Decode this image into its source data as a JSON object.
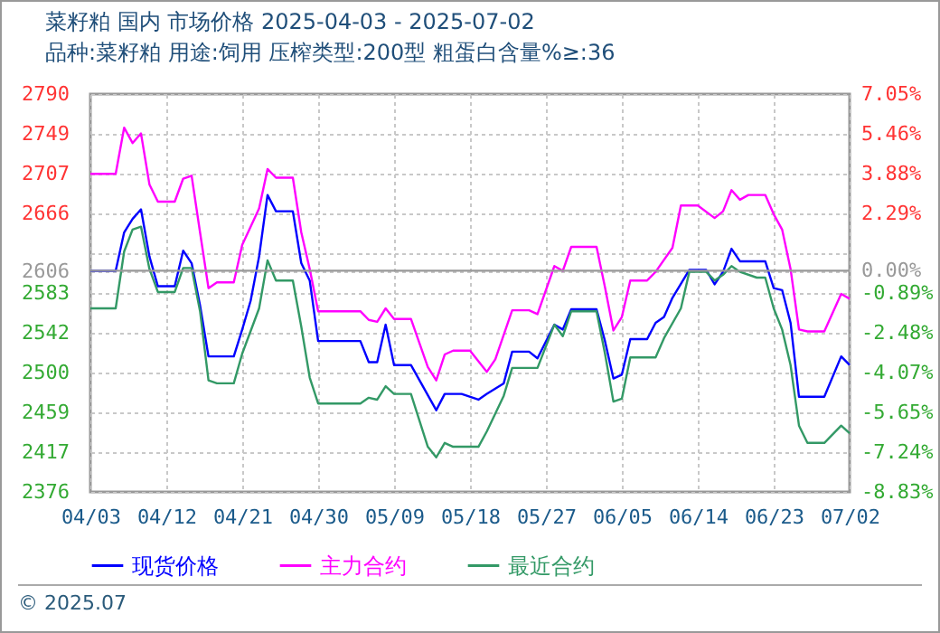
{
  "chart_data": {
    "type": "line",
    "title": "菜籽粕 国内 市场价格 2025-04-03 - 2025-07-02",
    "subtitle": "品种:菜籽粕 用途:饲用 压榨类型:200型 粗蛋白含量%≥:36",
    "xlim": [
      "2025-04-03",
      "2025-07-02"
    ],
    "xticks": [
      {
        "value": "2025-04-03",
        "label": "04/03"
      },
      {
        "value": "2025-04-12",
        "label": "04/12"
      },
      {
        "value": "2025-04-21",
        "label": "04/21"
      },
      {
        "value": "2025-04-30",
        "label": "04/30"
      },
      {
        "value": "2025-05-09",
        "label": "05/09"
      },
      {
        "value": "2025-05-18",
        "label": "05/18"
      },
      {
        "value": "2025-05-27",
        "label": "05/27"
      },
      {
        "value": "2025-06-05",
        "label": "06/05"
      },
      {
        "value": "2025-06-14",
        "label": "06/14"
      },
      {
        "value": "2025-06-23",
        "label": "06/23"
      },
      {
        "value": "2025-07-02",
        "label": "07/02"
      }
    ],
    "ylim": [
      2376,
      2790
    ],
    "yticks": [
      2790,
      2749,
      2707,
      2666,
      {
        "value": 2624,
        "label": null
      },
      2606,
      2583,
      2542,
      2500,
      2459,
      2417,
      2376
    ],
    "y2lim": [
      -8.83,
      7.05
    ],
    "y2ticks": [
      {
        "value": 7.05,
        "label": "7.05%"
      },
      {
        "value": 5.46,
        "label": "5.46%"
      },
      {
        "value": 3.88,
        "label": "3.88%"
      },
      {
        "value": 2.29,
        "label": "2.29%"
      },
      {
        "value": 0,
        "label": "0.00%"
      },
      {
        "value": -0.89,
        "label": "-0.89%"
      },
      {
        "value": -2.48,
        "label": "-2.48%"
      },
      {
        "value": -4.07,
        "label": "-4.07%"
      },
      {
        "value": -5.65,
        "label": "-5.65%"
      },
      {
        "value": -7.24,
        "label": "-7.24%"
      },
      {
        "value": -8.83,
        "label": "-8.83%"
      }
    ],
    "ref_lines": [
      {
        "axis": "y2",
        "value": 0,
        "color": "#999999"
      }
    ],
    "grid": true,
    "legend": "bottom",
    "annotations": [
      "© 2025.07"
    ],
    "series": [
      {
        "name": "现货价格",
        "color": "#0000ff",
        "x": [
          "2025-04-03",
          "2025-04-06",
          "2025-04-07",
          "2025-04-08",
          "2025-04-09",
          "2025-04-10",
          "2025-04-11",
          "2025-04-13",
          "2025-04-14",
          "2025-04-15",
          "2025-04-16",
          "2025-04-17",
          "2025-04-20",
          "2025-04-21",
          "2025-04-22",
          "2025-04-23",
          "2025-04-24",
          "2025-04-25",
          "2025-04-27",
          "2025-04-28",
          "2025-04-29",
          "2025-04-30",
          "2025-05-05",
          "2025-05-06",
          "2025-05-07",
          "2025-05-08",
          "2025-05-09",
          "2025-05-11",
          "2025-05-14",
          "2025-05-15",
          "2025-05-17",
          "2025-05-19",
          "2025-05-20",
          "2025-05-22",
          "2025-05-23",
          "2025-05-25",
          "2025-05-26",
          "2025-05-28",
          "2025-05-29",
          "2025-05-30",
          "2025-06-02",
          "2025-06-03",
          "2025-06-04",
          "2025-06-05",
          "2025-06-06",
          "2025-06-08",
          "2025-06-09",
          "2025-06-10",
          "2025-06-11",
          "2025-06-13",
          "2025-06-15",
          "2025-06-16",
          "2025-06-17",
          "2025-06-18",
          "2025-06-19",
          "2025-06-22",
          "2025-06-23",
          "2025-06-24",
          "2025-06-25",
          "2025-06-26",
          "2025-06-29",
          "2025-07-01",
          "2025-07-02"
        ],
        "values": [
          2606,
          2606,
          2646,
          2660,
          2670,
          2621,
          2590,
          2590,
          2627,
          2614,
          2570,
          2517,
          2517,
          2545,
          2575,
          2621,
          2685,
          2668,
          2668,
          2614,
          2596,
          2533,
          2533,
          2511,
          2511,
          2550,
          2508,
          2508,
          2461,
          2478,
          2478,
          2472,
          2478,
          2489,
          2522,
          2522,
          2515,
          2550,
          2545,
          2566,
          2566,
          2533,
          2494,
          2498,
          2535,
          2535,
          2552,
          2558,
          2578,
          2607,
          2607,
          2592,
          2605,
          2629,
          2616,
          2616,
          2588,
          2586,
          2552,
          2475,
          2475,
          2517,
          2508
        ]
      },
      {
        "name": "主力合约",
        "color": "#ff00ff",
        "x": [
          "2025-04-03",
          "2025-04-06",
          "2025-04-07",
          "2025-04-08",
          "2025-04-09",
          "2025-04-10",
          "2025-04-11",
          "2025-04-13",
          "2025-04-14",
          "2025-04-15",
          "2025-04-16",
          "2025-04-17",
          "2025-04-18",
          "2025-04-20",
          "2025-04-21",
          "2025-04-23",
          "2025-04-24",
          "2025-04-25",
          "2025-04-27",
          "2025-04-28",
          "2025-04-29",
          "2025-04-30",
          "2025-05-05",
          "2025-05-06",
          "2025-05-07",
          "2025-05-08",
          "2025-05-09",
          "2025-05-11",
          "2025-05-13",
          "2025-05-14",
          "2025-05-15",
          "2025-05-16",
          "2025-05-18",
          "2025-05-20",
          "2025-05-21",
          "2025-05-23",
          "2025-05-25",
          "2025-05-26",
          "2025-05-28",
          "2025-05-29",
          "2025-05-30",
          "2025-06-02",
          "2025-06-03",
          "2025-06-04",
          "2025-06-05",
          "2025-06-06",
          "2025-06-08",
          "2025-06-09",
          "2025-06-11",
          "2025-06-12",
          "2025-06-14",
          "2025-06-16",
          "2025-06-17",
          "2025-06-18",
          "2025-06-19",
          "2025-06-20",
          "2025-06-22",
          "2025-06-23",
          "2025-06-24",
          "2025-06-25",
          "2025-06-26",
          "2025-06-27",
          "2025-06-29",
          "2025-07-01",
          "2025-07-02"
        ],
        "values": [
          2707,
          2707,
          2755,
          2739,
          2749,
          2696,
          2678,
          2678,
          2702,
          2705,
          2646,
          2588,
          2594,
          2594,
          2633,
          2671,
          2712,
          2703,
          2703,
          2646,
          2608,
          2564,
          2564,
          2555,
          2553,
          2567,
          2556,
          2556,
          2506,
          2492,
          2519,
          2523,
          2523,
          2501,
          2514,
          2565,
          2565,
          2561,
          2611,
          2606,
          2631,
          2631,
          2589,
          2544,
          2558,
          2596,
          2596,
          2605,
          2630,
          2674,
          2674,
          2661,
          2668,
          2690,
          2680,
          2685,
          2685,
          2665,
          2649,
          2608,
          2545,
          2543,
          2543,
          2582,
          2577
        ]
      },
      {
        "name": "最近合约",
        "color": "#339966",
        "x": [
          "2025-04-03",
          "2025-04-06",
          "2025-04-07",
          "2025-04-08",
          "2025-04-09",
          "2025-04-10",
          "2025-04-11",
          "2025-04-13",
          "2025-04-14",
          "2025-04-15",
          "2025-04-16",
          "2025-04-17",
          "2025-04-18",
          "2025-04-20",
          "2025-04-21",
          "2025-04-23",
          "2025-04-24",
          "2025-04-25",
          "2025-04-27",
          "2025-04-28",
          "2025-04-29",
          "2025-04-30",
          "2025-05-05",
          "2025-05-06",
          "2025-05-07",
          "2025-05-08",
          "2025-05-09",
          "2025-05-11",
          "2025-05-13",
          "2025-05-14",
          "2025-05-15",
          "2025-05-16",
          "2025-05-19",
          "2025-05-20",
          "2025-05-22",
          "2025-05-23",
          "2025-05-26",
          "2025-05-28",
          "2025-05-29",
          "2025-05-30",
          "2025-06-02",
          "2025-06-03",
          "2025-06-04",
          "2025-06-05",
          "2025-06-06",
          "2025-06-09",
          "2025-06-10",
          "2025-06-12",
          "2025-06-13",
          "2025-06-15",
          "2025-06-16",
          "2025-06-17",
          "2025-06-18",
          "2025-06-19",
          "2025-06-21",
          "2025-06-22",
          "2025-06-23",
          "2025-06-24",
          "2025-06-25",
          "2025-06-26",
          "2025-06-27",
          "2025-06-29",
          "2025-07-01",
          "2025-07-02"
        ],
        "values": [
          2567,
          2567,
          2626,
          2649,
          2652,
          2608,
          2584,
          2584,
          2609,
          2609,
          2564,
          2492,
          2489,
          2489,
          2520,
          2567,
          2617,
          2596,
          2596,
          2548,
          2495,
          2468,
          2468,
          2474,
          2472,
          2486,
          2478,
          2478,
          2423,
          2412,
          2427,
          2423,
          2423,
          2439,
          2476,
          2505,
          2505,
          2550,
          2538,
          2564,
          2564,
          2520,
          2470,
          2473,
          2516,
          2516,
          2536,
          2567,
          2605,
          2605,
          2596,
          2602,
          2611,
          2605,
          2599,
          2599,
          2567,
          2545,
          2508,
          2445,
          2427,
          2427,
          2445,
          2437
        ]
      }
    ]
  }
}
